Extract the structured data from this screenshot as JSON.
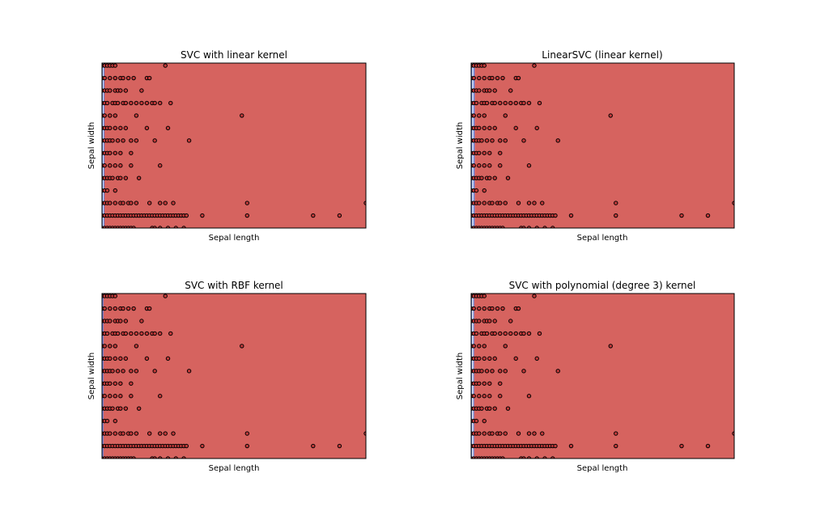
{
  "figure": {
    "background": "#ffffff",
    "region_colors": {
      "red_class": "#d6635f",
      "blue_class": "#5b7be0",
      "light_band": "#dde4f0"
    },
    "point_color": "#c33a3a",
    "point_edge": "#000000"
  },
  "chart_data": [
    {
      "type": "scatter",
      "title": "SVC with linear kernel",
      "xlabel": "Sepal length",
      "ylabel": "Sepal width",
      "xticks": "hidden",
      "yticks": "hidden",
      "grid": false,
      "xlim": [
        0,
        100
      ],
      "ylim": [
        0,
        13.2
      ],
      "rows_y": [
        13,
        12,
        11,
        10,
        9,
        8,
        7,
        6,
        5,
        4,
        3,
        2,
        1,
        0
      ],
      "row_x": [
        [
          0,
          1,
          2,
          3,
          4,
          5,
          24
        ],
        [
          0,
          1,
          3,
          5,
          7,
          8,
          10,
          12,
          17,
          18
        ],
        [
          0,
          1,
          2,
          3,
          5,
          6,
          7,
          9,
          15
        ],
        [
          0,
          1,
          2,
          4,
          5,
          6,
          8,
          9,
          11,
          13,
          15,
          17,
          19,
          20,
          22,
          26
        ],
        [
          0,
          1,
          3,
          5,
          13,
          53
        ],
        [
          0,
          1,
          2,
          3,
          5,
          7,
          9,
          17,
          25
        ],
        [
          0,
          1,
          2,
          3,
          4,
          6,
          8,
          11,
          13,
          20,
          33
        ],
        [
          0,
          1,
          2,
          3,
          5,
          7,
          11
        ],
        [
          0,
          1,
          3,
          5,
          7,
          11,
          22
        ],
        [
          0,
          1,
          2,
          3,
          4,
          6,
          7,
          9,
          14
        ],
        [
          0,
          1,
          2,
          5
        ],
        [
          0,
          1,
          2,
          3,
          5,
          7,
          8,
          10,
          11,
          13,
          18,
          22,
          24,
          27,
          55,
          100
        ],
        [
          0,
          1,
          2,
          3,
          4,
          5,
          6,
          7,
          8,
          9,
          10,
          11,
          12,
          13,
          14,
          15,
          16,
          17,
          18,
          19,
          20,
          21,
          22,
          23,
          24,
          25,
          26,
          27,
          28,
          29,
          30,
          31,
          32,
          38,
          55,
          80,
          90
        ],
        [
          0,
          1,
          2,
          3,
          4,
          5,
          6,
          7,
          8,
          9,
          10,
          11,
          12,
          19,
          20,
          22,
          25,
          28,
          31
        ]
      ],
      "decision_bands": [
        {
          "class": "blue",
          "x_from": 0,
          "x_to": 0.9
        },
        {
          "class": "light",
          "x_from": 0.3,
          "x_to": 0.6
        },
        {
          "class": "red",
          "x_from": 0.9,
          "x_to": 100
        }
      ]
    },
    {
      "type": "scatter",
      "title": "LinearSVC (linear kernel)",
      "xlabel": "Sepal length",
      "ylabel": "Sepal width",
      "xticks": "hidden",
      "yticks": "hidden",
      "grid": false,
      "xlim": [
        0,
        100
      ],
      "ylim": [
        0,
        13.2
      ],
      "rows_y": [
        13,
        12,
        11,
        10,
        9,
        8,
        7,
        6,
        5,
        4,
        3,
        2,
        1,
        0
      ],
      "row_x": [
        [
          0,
          1,
          2,
          3,
          4,
          5,
          24
        ],
        [
          0,
          1,
          3,
          5,
          7,
          8,
          10,
          12,
          17,
          18
        ],
        [
          0,
          1,
          2,
          3,
          5,
          6,
          7,
          9,
          15
        ],
        [
          0,
          1,
          2,
          4,
          5,
          6,
          8,
          9,
          11,
          13,
          15,
          17,
          19,
          20,
          22,
          26
        ],
        [
          0,
          1,
          3,
          5,
          13,
          53
        ],
        [
          0,
          1,
          2,
          3,
          5,
          7,
          9,
          17,
          25
        ],
        [
          0,
          1,
          2,
          3,
          4,
          6,
          8,
          11,
          13,
          20,
          33
        ],
        [
          0,
          1,
          2,
          3,
          5,
          7,
          11
        ],
        [
          0,
          1,
          3,
          5,
          7,
          11,
          22
        ],
        [
          0,
          1,
          2,
          3,
          4,
          6,
          7,
          9,
          14
        ],
        [
          0,
          1,
          2,
          5
        ],
        [
          0,
          1,
          2,
          3,
          5,
          7,
          8,
          10,
          11,
          13,
          18,
          22,
          24,
          27,
          55,
          100
        ],
        [
          0,
          1,
          2,
          3,
          4,
          5,
          6,
          7,
          8,
          9,
          10,
          11,
          12,
          13,
          14,
          15,
          16,
          17,
          18,
          19,
          20,
          21,
          22,
          23,
          24,
          25,
          26,
          27,
          28,
          29,
          30,
          31,
          32,
          38,
          55,
          80,
          90
        ],
        [
          0,
          1,
          2,
          3,
          4,
          5,
          6,
          7,
          8,
          9,
          10,
          11,
          12,
          19,
          20,
          22,
          25,
          28,
          31
        ]
      ],
      "decision_bands": [
        {
          "class": "blue",
          "x_from": 0,
          "x_to": 1.3
        },
        {
          "class": "light",
          "x_from": 0.4,
          "x_to": 0.9
        },
        {
          "class": "red",
          "x_from": 1.3,
          "x_to": 100
        }
      ]
    },
    {
      "type": "scatter",
      "title": "SVC with RBF kernel",
      "xlabel": "Sepal length",
      "ylabel": "Sepal width",
      "xticks": "hidden",
      "yticks": "hidden",
      "grid": false,
      "xlim": [
        0,
        100
      ],
      "ylim": [
        0,
        13.2
      ],
      "rows_y": [
        13,
        12,
        11,
        10,
        9,
        8,
        7,
        6,
        5,
        4,
        3,
        2,
        1,
        0
      ],
      "row_x": [
        [
          0,
          1,
          2,
          3,
          4,
          5,
          24
        ],
        [
          0,
          1,
          3,
          5,
          7,
          8,
          10,
          12,
          17,
          18
        ],
        [
          0,
          1,
          2,
          3,
          5,
          6,
          7,
          9,
          15
        ],
        [
          0,
          1,
          2,
          4,
          5,
          6,
          8,
          9,
          11,
          13,
          15,
          17,
          19,
          20,
          22,
          26
        ],
        [
          0,
          1,
          3,
          5,
          13,
          53
        ],
        [
          0,
          1,
          2,
          3,
          5,
          7,
          9,
          17,
          25
        ],
        [
          0,
          1,
          2,
          3,
          4,
          6,
          8,
          11,
          13,
          20,
          33
        ],
        [
          0,
          1,
          2,
          3,
          5,
          7,
          11
        ],
        [
          0,
          1,
          3,
          5,
          7,
          11,
          22
        ],
        [
          0,
          1,
          2,
          3,
          4,
          6,
          7,
          9,
          14
        ],
        [
          0,
          1,
          2,
          5
        ],
        [
          0,
          1,
          2,
          3,
          5,
          7,
          8,
          10,
          11,
          13,
          18,
          22,
          24,
          27,
          55,
          100
        ],
        [
          0,
          1,
          2,
          3,
          4,
          5,
          6,
          7,
          8,
          9,
          10,
          11,
          12,
          13,
          14,
          15,
          16,
          17,
          18,
          19,
          20,
          21,
          22,
          23,
          24,
          25,
          26,
          27,
          28,
          29,
          30,
          31,
          32,
          38,
          55,
          80,
          90
        ],
        [
          0,
          1,
          2,
          3,
          4,
          5,
          6,
          7,
          8,
          9,
          10,
          11,
          12,
          19,
          20,
          22,
          25,
          28,
          31
        ]
      ],
      "decision_bands": [
        {
          "class": "blue",
          "x_from": 0,
          "x_to": 0.5
        },
        {
          "class": "red",
          "x_from": 0.5,
          "x_to": 100
        }
      ]
    },
    {
      "type": "scatter",
      "title": "SVC with polynomial (degree 3) kernel",
      "xlabel": "Sepal length",
      "ylabel": "Sepal width",
      "xticks": "hidden",
      "yticks": "hidden",
      "grid": false,
      "xlim": [
        0,
        100
      ],
      "ylim": [
        0,
        13.2
      ],
      "rows_y": [
        13,
        12,
        11,
        10,
        9,
        8,
        7,
        6,
        5,
        4,
        3,
        2,
        1,
        0
      ],
      "row_x": [
        [
          0,
          1,
          2,
          3,
          4,
          5,
          24
        ],
        [
          0,
          1,
          3,
          5,
          7,
          8,
          10,
          12,
          17,
          18
        ],
        [
          0,
          1,
          2,
          3,
          5,
          6,
          7,
          9,
          15
        ],
        [
          0,
          1,
          2,
          4,
          5,
          6,
          8,
          9,
          11,
          13,
          15,
          17,
          19,
          20,
          22,
          26
        ],
        [
          0,
          1,
          3,
          5,
          13,
          53
        ],
        [
          0,
          1,
          2,
          3,
          5,
          7,
          9,
          17,
          25
        ],
        [
          0,
          1,
          2,
          3,
          4,
          6,
          8,
          11,
          13,
          20,
          33
        ],
        [
          0,
          1,
          2,
          3,
          5,
          7,
          11
        ],
        [
          0,
          1,
          3,
          5,
          7,
          11,
          22
        ],
        [
          0,
          1,
          2,
          3,
          4,
          6,
          7,
          9,
          14
        ],
        [
          0,
          1,
          2,
          5
        ],
        [
          0,
          1,
          2,
          3,
          5,
          7,
          8,
          10,
          11,
          13,
          18,
          22,
          24,
          27,
          55,
          100
        ],
        [
          0,
          1,
          2,
          3,
          4,
          5,
          6,
          7,
          8,
          9,
          10,
          11,
          12,
          13,
          14,
          15,
          16,
          17,
          18,
          19,
          20,
          21,
          22,
          23,
          24,
          25,
          26,
          27,
          28,
          29,
          30,
          31,
          32,
          38,
          55,
          80,
          90
        ],
        [
          0,
          1,
          2,
          3,
          4,
          5,
          6,
          7,
          8,
          9,
          10,
          11,
          12,
          19,
          20,
          22,
          25,
          28,
          31
        ]
      ],
      "decision_bands": [
        {
          "class": "blue",
          "x_from": 0,
          "x_to": 1.1
        },
        {
          "class": "light",
          "x_from": 0.3,
          "x_to": 0.8
        },
        {
          "class": "red",
          "x_from": 1.1,
          "x_to": 100
        }
      ]
    }
  ]
}
